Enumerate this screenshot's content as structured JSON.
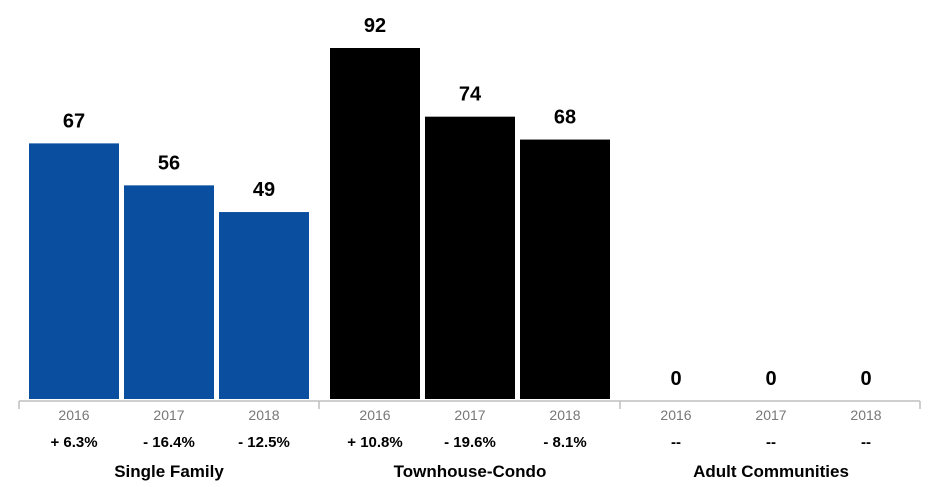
{
  "chart_data": {
    "type": "bar",
    "title": "",
    "xlabel": "",
    "ylabel": "",
    "ylim": [
      0,
      92
    ],
    "groups": [
      {
        "name": "Single Family",
        "color": "#0a4ea0",
        "years": [
          "2016",
          "2017",
          "2018"
        ],
        "values": [
          67,
          56,
          49
        ],
        "value_labels": [
          "67",
          "56",
          "49"
        ],
        "changes": [
          "+ 6.3%",
          "- 16.4%",
          "- 12.5%"
        ]
      },
      {
        "name": "Townhouse-Condo",
        "color": "#000000",
        "years": [
          "2016",
          "2017",
          "2018"
        ],
        "values": [
          92,
          74,
          68
        ],
        "value_labels": [
          "92",
          "74",
          "68"
        ],
        "changes": [
          "+ 10.8%",
          "- 19.6%",
          "- 8.1%"
        ]
      },
      {
        "name": "Adult Communities",
        "color": "#7a7a7a",
        "years": [
          "2016",
          "2017",
          "2018"
        ],
        "values": [
          0,
          0,
          0
        ],
        "value_labels": [
          "0",
          "0",
          "0"
        ],
        "changes": [
          "--",
          "--",
          "--"
        ]
      }
    ]
  },
  "colors": {
    "axis": "#bfbfbf",
    "year_text": "#777777"
  }
}
